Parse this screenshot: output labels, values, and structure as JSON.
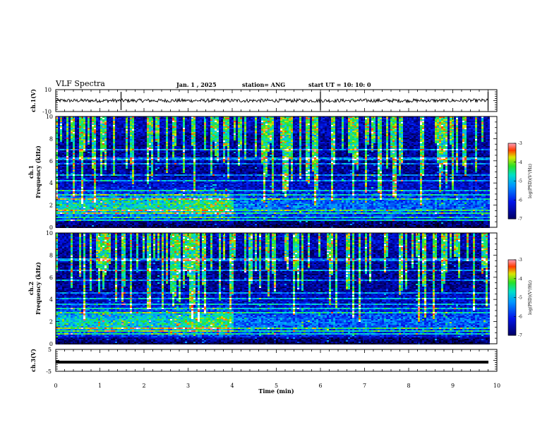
{
  "header": {
    "title": "VLF Spectra",
    "date": "Jan. 1 , 2025",
    "station": "station= ANG",
    "start_time": "start UT = 10: 10: 0"
  },
  "chart_data": [
    {
      "type": "line",
      "name": "ch1-waveform",
      "ylabel": "ch.1(V)",
      "ylim": [
        -10,
        10
      ],
      "ytick_labels": [
        "10",
        "-10"
      ],
      "xlim": [
        0,
        10
      ],
      "baseline": 0,
      "spikes_min": [
        1.48,
        6.0,
        9.8
      ]
    },
    {
      "type": "heatmap",
      "name": "ch1-spectrogram",
      "ylabel_line1": "ch.1",
      "ylabel_line2": "Frequency (kHz)",
      "ylim": [
        0,
        10
      ],
      "ytick_labels": [
        "0",
        "2",
        "4",
        "6",
        "8",
        "10"
      ],
      "xlim": [
        0,
        9.8
      ],
      "colorbar": {
        "label": "log(PSD)(V²/Hz)",
        "range": [
          -7,
          -3
        ],
        "tick_labels": [
          "-3",
          "-4",
          "-5",
          "-6",
          "-7"
        ]
      }
    },
    {
      "type": "heatmap",
      "name": "ch2-spectrogram",
      "ylabel_line1": "ch.2",
      "ylabel_line2": "Frequency (kHz)",
      "ylim": [
        0,
        10
      ],
      "ytick_labels": [
        "0",
        "2",
        "4",
        "6",
        "8",
        "10"
      ],
      "xlim": [
        0,
        9.8
      ],
      "colorbar": {
        "label": "log(PSD)(V²/Hz)",
        "range": [
          -7,
          -3
        ],
        "tick_labels": [
          "-3",
          "-4",
          "-5",
          "-6",
          "-7"
        ]
      }
    },
    {
      "type": "line",
      "name": "ch3-waveform",
      "ylabel": "ch.3(V)",
      "ylim": [
        -5,
        5
      ],
      "ytick_labels": [
        "5",
        "-5"
      ],
      "xlim": [
        0,
        10
      ],
      "baseline": -0.8
    }
  ],
  "xaxis": {
    "label": "Time (min)",
    "range": [
      0,
      10
    ],
    "tick_labels": [
      "0",
      "1",
      "2",
      "3",
      "4",
      "5",
      "6",
      "7",
      "8",
      "9",
      "10"
    ]
  }
}
